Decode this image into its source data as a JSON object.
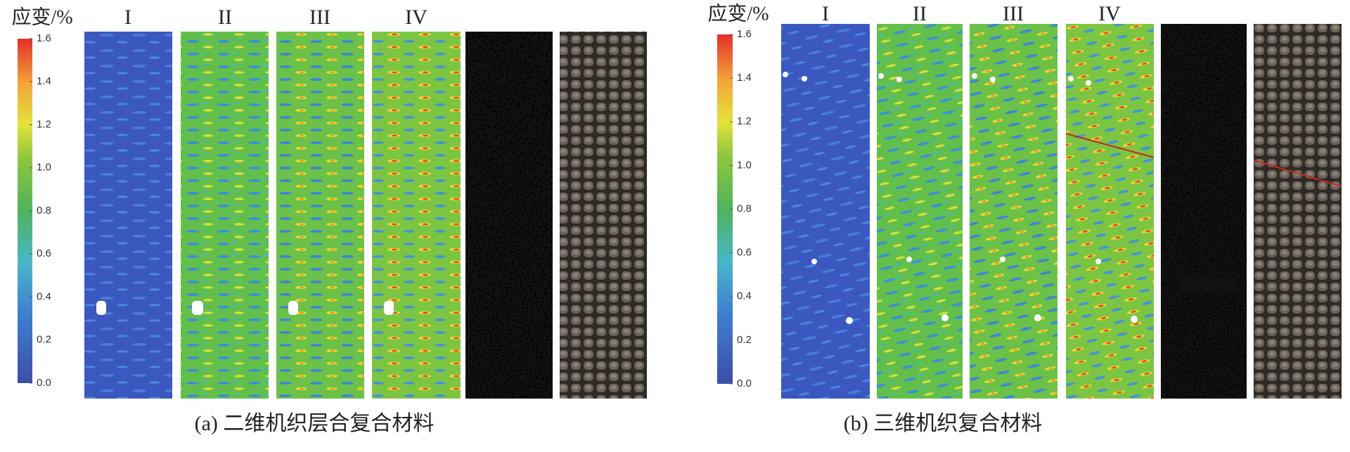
{
  "panels": [
    {
      "colorbar": {
        "label": "应变/%",
        "ticks": [
          "0.0",
          "0.2",
          "0.4",
          "0.6",
          "0.8",
          "1.0",
          "1.2",
          "1.4",
          "1.6"
        ]
      },
      "columns": [
        "I",
        "II",
        "III",
        "IV"
      ],
      "caption": "(a) 二维机织层合复合材料"
    },
    {
      "colorbar": {
        "label": "应变/%",
        "ticks": [
          "0.0",
          "0.2",
          "0.4",
          "0.6",
          "0.8",
          "1.0",
          "1.2",
          "1.4",
          "1.6"
        ]
      },
      "columns": [
        "I",
        "II",
        "III",
        "IV"
      ],
      "caption": "(b) 三维机织复合材料"
    }
  ]
}
